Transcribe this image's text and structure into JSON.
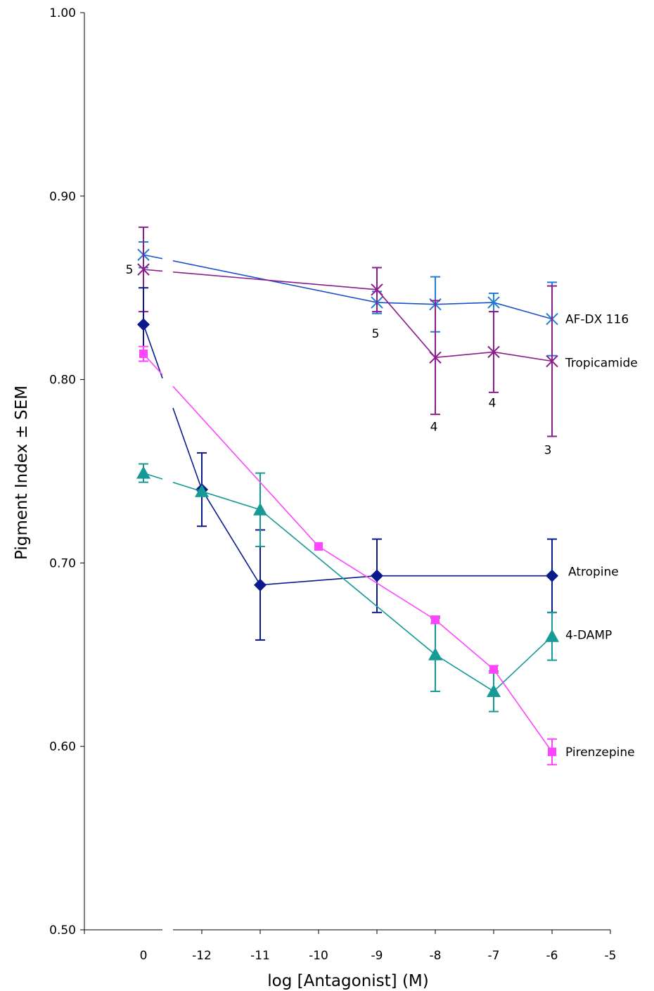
{
  "chart_data": {
    "type": "line",
    "xlabel": "log [Antagonist] (M)",
    "ylabel": "Pigment Index ± SEM",
    "ylim": [
      0.5,
      1.0
    ],
    "y_ticks": [
      "1.00",
      "0.90",
      "0.80",
      "0.70",
      "0.60",
      "0.50"
    ],
    "x_ticks": [
      "0",
      "-12",
      "-11",
      "-10",
      "-9",
      "-8",
      "-7",
      "-6",
      "-5"
    ],
    "x_axis_break": "between 0 and -12",
    "grid": false,
    "legend": "labels at line ends (right)",
    "series": [
      {
        "name": "AF-DX 116",
        "color": "#1f7fd8",
        "line_color": "#1a4fd0",
        "marker": "asterisk",
        "points": [
          {
            "x": "0",
            "y": 0.868,
            "err": 0.007
          },
          {
            "x": "-9",
            "y": 0.842,
            "err": 0.006
          },
          {
            "x": "-8",
            "y": 0.841,
            "err": 0.015
          },
          {
            "x": "-7",
            "y": 0.842,
            "err": 0.005
          },
          {
            "x": "-6",
            "y": 0.833,
            "err": 0.02
          }
        ]
      },
      {
        "name": "Tropicamide",
        "color": "#8b1c8b",
        "line_color": "#8b1c8b",
        "marker": "x-star",
        "points": [
          {
            "x": "0",
            "y": 0.86,
            "err": 0.023,
            "n": "5"
          },
          {
            "x": "-9",
            "y": 0.849,
            "err": 0.012,
            "n": "5"
          },
          {
            "x": "-8",
            "y": 0.812,
            "err": 0.031,
            "n": "4"
          },
          {
            "x": "-7",
            "y": 0.815,
            "err": 0.022,
            "n": "4"
          },
          {
            "x": "-6",
            "y": 0.81,
            "err": 0.041,
            "n": "3"
          }
        ]
      },
      {
        "name": "Atropine",
        "color": "#0a1a8c",
        "line_color": "#0a1a8c",
        "marker": "diamond",
        "points": [
          {
            "x": "0",
            "y": 0.83,
            "err": 0.02
          },
          {
            "x": "-12",
            "y": 0.74,
            "err": 0.02
          },
          {
            "x": "-11",
            "y": 0.688,
            "err": 0.03
          },
          {
            "x": "-9",
            "y": 0.693,
            "err": 0.02
          },
          {
            "x": "-6",
            "y": 0.693,
            "err": 0.02
          }
        ]
      },
      {
        "name": "4-DAMP",
        "color": "#159a96",
        "line_color": "#159a96",
        "marker": "triangle",
        "points": [
          {
            "x": "0",
            "y": 0.749,
            "err": 0.005
          },
          {
            "x": "-12",
            "y": 0.739,
            "err": 0.0
          },
          {
            "x": "-11",
            "y": 0.729,
            "err": 0.02
          },
          {
            "x": "-8",
            "y": 0.65,
            "err": 0.02
          },
          {
            "x": "-7",
            "y": 0.63,
            "err": 0.011
          },
          {
            "x": "-6",
            "y": 0.66,
            "err": 0.013
          }
        ]
      },
      {
        "name": "Pirenzepine",
        "color": "#ff44ff",
        "line_color": "#ff44ff",
        "marker": "square",
        "points": [
          {
            "x": "0",
            "y": 0.814,
            "err": 0.004
          },
          {
            "x": "-10",
            "y": 0.709,
            "err": 0.0
          },
          {
            "x": "-8",
            "y": 0.669,
            "err": 0.002
          },
          {
            "x": "-7",
            "y": 0.642,
            "err": 0.002
          },
          {
            "x": "-6",
            "y": 0.597,
            "err": 0.007
          }
        ]
      }
    ]
  }
}
